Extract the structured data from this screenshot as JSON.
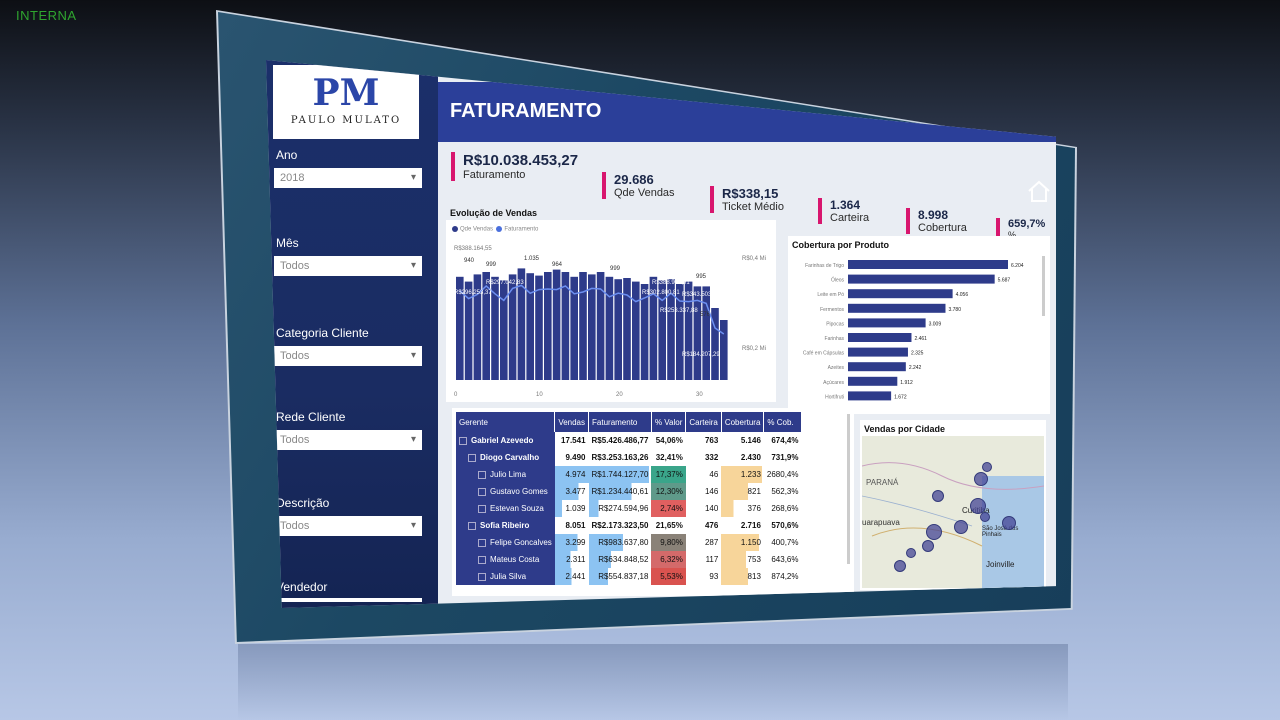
{
  "classification": "INTERNA",
  "logo": {
    "initials": "PM",
    "name": "PAULO MULATO"
  },
  "page_title": "FATURAMENTO",
  "filters": [
    {
      "label": "Ano",
      "value": "2018"
    },
    {
      "label": "Mês",
      "value": "Todos"
    },
    {
      "label": "Categoria Cliente",
      "value": "Todos"
    },
    {
      "label": "Rede Cliente",
      "value": "Todos"
    },
    {
      "label": "Descrição",
      "value": "Todos"
    },
    {
      "label": "Vendedor",
      "value": ""
    }
  ],
  "kpis": [
    {
      "value": "R$10.038.453,27",
      "label": "Faturamento"
    },
    {
      "value": "29.686",
      "label": "Qde Vendas"
    },
    {
      "value": "R$338,15",
      "label": "Ticket Médio"
    },
    {
      "value": "1.364",
      "label": "Carteira"
    },
    {
      "value": "8.998",
      "label": "Cobertura"
    },
    {
      "value": "659,7%",
      "label": "% Cobertura"
    }
  ],
  "sales_panel": {
    "title": "Evolução de Vendas",
    "legend": [
      "Qde Vendas",
      "Faturamento"
    ],
    "annotations": [
      "R$388.164,55",
      "940",
      "999",
      "1.035",
      "964",
      "999",
      "995",
      "R$297.042,83",
      "R$296.253,37",
      "R$388.906,91",
      "R$302.800,81",
      "R$343.503,41",
      "R$253.337,88",
      "576",
      "R$184.207,29"
    ],
    "axis_left": [
      "0",
      "10",
      "20",
      "30"
    ],
    "axis_right": [
      "R$0,4 Mi",
      "R$0,2 Mi"
    ]
  },
  "chart_data": {
    "type": "bar",
    "title": "Cobertura por Produto",
    "categories": [
      "Farinhas de Trigo",
      "Óleos",
      "Leite em Pó",
      "Fermentos",
      "Pipocas",
      "Farinhas",
      "Café em Cápsulas",
      "Azeites",
      "Açúcares",
      "Hortifruti"
    ],
    "values": [
      6204,
      5687,
      4056,
      3780,
      3009,
      2461,
      2325,
      2242,
      1912,
      1672
    ],
    "value_labels": [
      "6.204",
      "5.687",
      "4.056",
      "3.780",
      "3.009",
      "2.461",
      "2.325",
      "2.242",
      "1.912",
      "1.672"
    ],
    "bar_color": "#2e3b8a"
  },
  "table": {
    "headers": [
      "Gerente",
      "Vendas",
      "Faturamento",
      "% Valor",
      "Carteira",
      "Cobertura",
      "% Cob."
    ],
    "rows": [
      {
        "level": 0,
        "name": "Gabriel Azevedo",
        "vendas": "17.541",
        "fat": "R$5.426.486,77",
        "pval": "54,06%",
        "cart": "763",
        "cob": "5.146",
        "pcob": "674,4%"
      },
      {
        "level": 1,
        "name": "Diogo Carvalho",
        "vendas": "9.490",
        "fat": "R$3.253.163,26",
        "pval": "32,41%",
        "cart": "332",
        "cob": "2.430",
        "pcob": "731,9%"
      },
      {
        "level": 2,
        "name": "Julio Lima",
        "vendas": "4.974",
        "fat": "R$1.744.127,70",
        "pval": "17,37%",
        "cart": "46",
        "cob": "1.233",
        "pcob": "2680,4%"
      },
      {
        "level": 2,
        "name": "Gustavo Gomes",
        "vendas": "3.477",
        "fat": "R$1.234.440,61",
        "pval": "12,30%",
        "cart": "146",
        "cob": "821",
        "pcob": "562,3%"
      },
      {
        "level": 2,
        "name": "Estevan Souza",
        "vendas": "1.039",
        "fat": "R$274.594,96",
        "pval": "2,74%",
        "cart": "140",
        "cob": "376",
        "pcob": "268,6%"
      },
      {
        "level": 1,
        "name": "Sofia Ribeiro",
        "vendas": "8.051",
        "fat": "R$2.173.323,50",
        "pval": "21,65%",
        "cart": "476",
        "cob": "2.716",
        "pcob": "570,6%"
      },
      {
        "level": 2,
        "name": "Felipe Goncalves",
        "vendas": "3.299",
        "fat": "R$983.637,80",
        "pval": "9,80%",
        "cart": "287",
        "cob": "1.150",
        "pcob": "400,7%"
      },
      {
        "level": 2,
        "name": "Mateus Costa",
        "vendas": "2.311",
        "fat": "R$634.848,52",
        "pval": "6,32%",
        "cart": "117",
        "cob": "753",
        "pcob": "643,6%"
      },
      {
        "level": 2,
        "name": "Julia Silva",
        "vendas": "2.441",
        "fat": "R$554.837,18",
        "pval": "5,53%",
        "cart": "93",
        "cob": "813",
        "pcob": "874,2%"
      }
    ]
  },
  "map": {
    "title": "Vendas por Cidade",
    "labels": [
      "PARANÁ",
      "uarapuava",
      "Curitiba",
      "São José dos Pinhais",
      "Joinville"
    ]
  }
}
